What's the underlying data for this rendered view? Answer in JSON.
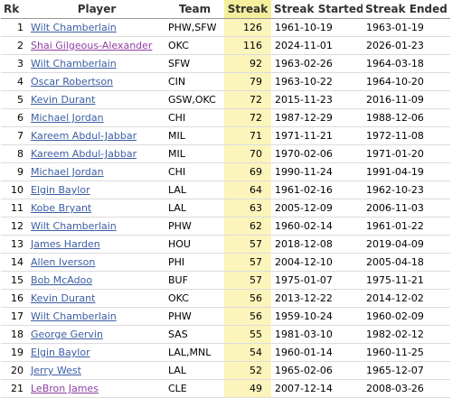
{
  "columns": {
    "rk": "Rk",
    "player": "Player",
    "team": "Team",
    "streak": "Streak",
    "started": "Streak Started",
    "ended": "Streak Ended"
  },
  "colors": {
    "link": "#3b5ea3",
    "visited_link": "#8f3fa3",
    "sorted_header": "#f5ee9a",
    "sorted_column": "#fbf5bb"
  },
  "rows": [
    {
      "rk": "1",
      "player": "Wilt Chamberlain",
      "team": "PHW,SFW",
      "streak": "126",
      "started": "1961-10-19",
      "ended": "1963-01-19",
      "visited": false
    },
    {
      "rk": "2",
      "player": "Shai Gilgeous-Alexander",
      "team": "OKC",
      "streak": "116",
      "started": "2024-11-01",
      "ended": "2026-01-23",
      "visited": true
    },
    {
      "rk": "3",
      "player": "Wilt Chamberlain",
      "team": "SFW",
      "streak": "92",
      "started": "1963-02-26",
      "ended": "1964-03-18",
      "visited": false
    },
    {
      "rk": "4",
      "player": "Oscar Robertson",
      "team": "CIN",
      "streak": "79",
      "started": "1963-10-22",
      "ended": "1964-10-20",
      "visited": false
    },
    {
      "rk": "5",
      "player": "Kevin Durant",
      "team": "GSW,OKC",
      "streak": "72",
      "started": "2015-11-23",
      "ended": "2016-11-09",
      "visited": false
    },
    {
      "rk": "6",
      "player": "Michael Jordan",
      "team": "CHI",
      "streak": "72",
      "started": "1987-12-29",
      "ended": "1988-12-06",
      "visited": false
    },
    {
      "rk": "7",
      "player": "Kareem Abdul-Jabbar",
      "team": "MIL",
      "streak": "71",
      "started": "1971-11-21",
      "ended": "1972-11-08",
      "visited": false
    },
    {
      "rk": "8",
      "player": "Kareem Abdul-Jabbar",
      "team": "MIL",
      "streak": "70",
      "started": "1970-02-06",
      "ended": "1971-01-20",
      "visited": false
    },
    {
      "rk": "9",
      "player": "Michael Jordan",
      "team": "CHI",
      "streak": "69",
      "started": "1990-11-24",
      "ended": "1991-04-19",
      "visited": false
    },
    {
      "rk": "10",
      "player": "Elgin Baylor",
      "team": "LAL",
      "streak": "64",
      "started": "1961-02-16",
      "ended": "1962-10-23",
      "visited": false
    },
    {
      "rk": "11",
      "player": "Kobe Bryant",
      "team": "LAL",
      "streak": "63",
      "started": "2005-12-09",
      "ended": "2006-11-03",
      "visited": false
    },
    {
      "rk": "12",
      "player": "Wilt Chamberlain",
      "team": "PHW",
      "streak": "62",
      "started": "1960-02-14",
      "ended": "1961-01-22",
      "visited": false
    },
    {
      "rk": "13",
      "player": "James Harden",
      "team": "HOU",
      "streak": "57",
      "started": "2018-12-08",
      "ended": "2019-04-09",
      "visited": false
    },
    {
      "rk": "14",
      "player": "Allen Iverson",
      "team": "PHI",
      "streak": "57",
      "started": "2004-12-10",
      "ended": "2005-04-18",
      "visited": false
    },
    {
      "rk": "15",
      "player": "Bob McAdoo",
      "team": "BUF",
      "streak": "57",
      "started": "1975-01-07",
      "ended": "1975-11-21",
      "visited": false
    },
    {
      "rk": "16",
      "player": "Kevin Durant",
      "team": "OKC",
      "streak": "56",
      "started": "2013-12-22",
      "ended": "2014-12-02",
      "visited": false
    },
    {
      "rk": "17",
      "player": "Wilt Chamberlain",
      "team": "PHW",
      "streak": "56",
      "started": "1959-10-24",
      "ended": "1960-02-09",
      "visited": false
    },
    {
      "rk": "18",
      "player": "George Gervin",
      "team": "SAS",
      "streak": "55",
      "started": "1981-03-10",
      "ended": "1982-02-12",
      "visited": false
    },
    {
      "rk": "19",
      "player": "Elgin Baylor",
      "team": "LAL,MNL",
      "streak": "54",
      "started": "1960-01-14",
      "ended": "1960-11-25",
      "visited": false
    },
    {
      "rk": "20",
      "player": "Jerry West",
      "team": "LAL",
      "streak": "52",
      "started": "1965-02-06",
      "ended": "1965-12-07",
      "visited": false
    },
    {
      "rk": "21",
      "player": "LeBron James",
      "team": "CLE",
      "streak": "49",
      "started": "2007-12-14",
      "ended": "2008-03-26",
      "visited": true
    }
  ]
}
